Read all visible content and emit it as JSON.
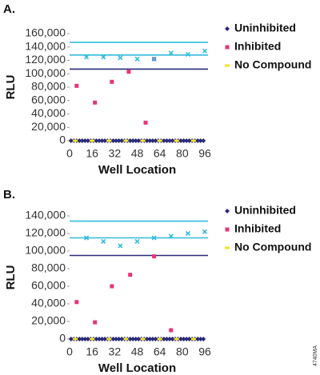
{
  "figure_id": "4740MA",
  "chart_data": [
    {
      "type": "scatter",
      "title": "A.",
      "xlabel": "Well Location",
      "ylabel": "RLU",
      "xlim": [
        0,
        96
      ],
      "xticks": [
        0,
        16,
        32,
        48,
        64,
        80,
        96
      ],
      "ylim": [
        0,
        160000
      ],
      "yticks": [
        0,
        {
          "value": 20000,
          "label": "20,000"
        },
        {
          "value": 40000,
          "label": "40,000"
        },
        {
          "value": 60000,
          "label": "60,000"
        },
        {
          "value": 80000,
          "label": "80,000"
        },
        {
          "value": 100000,
          "label": "100,000"
        },
        {
          "value": 120000,
          "label": "120,000"
        },
        {
          "value": 140000,
          "label": "140,000"
        },
        {
          "value": 160000,
          "label": "160,000"
        }
      ],
      "hlines": [
        {
          "value": 147000,
          "color": "#33bbdd"
        },
        {
          "value": 128000,
          "color": "#33bbdd"
        },
        {
          "value": 107000,
          "color": "#2a2a7a"
        }
      ],
      "series": [
        {
          "name": "Uninhibited",
          "color": "#2a2a7a",
          "marker": "diamond",
          "x": [
            1,
            3,
            5,
            7,
            9,
            11,
            13,
            15,
            17,
            19,
            21,
            23,
            25,
            27,
            29,
            31,
            33,
            35,
            37,
            39,
            41,
            43,
            45,
            47,
            49,
            51,
            53,
            55,
            57,
            59,
            61,
            63,
            65,
            67,
            69,
            71,
            73,
            75,
            77,
            79,
            81,
            83,
            85,
            87,
            89,
            91,
            93,
            95
          ],
          "values": [
            0,
            0,
            0,
            0,
            0,
            0,
            0,
            0,
            0,
            0,
            0,
            0,
            0,
            0,
            0,
            0,
            0,
            0,
            0,
            0,
            0,
            0,
            0,
            0,
            0,
            0,
            0,
            0,
            0,
            0,
            0,
            0,
            0,
            0,
            0,
            0,
            0,
            0,
            0,
            0,
            0,
            0,
            0,
            0,
            0,
            0,
            0,
            0
          ]
        },
        {
          "name": "Inhibited",
          "color": "#e8337a",
          "marker": "square",
          "x": [
            5,
            18,
            30,
            42,
            54,
            60
          ],
          "values": [
            82000,
            57000,
            88000,
            103000,
            27000,
            122000
          ]
        },
        {
          "name": "No Compound",
          "color": "#f2e22a",
          "marker": "dash",
          "x": [
            4,
            16,
            28,
            40,
            52,
            64,
            76,
            88
          ],
          "values": [
            0,
            0,
            0,
            0,
            0,
            0,
            0,
            0
          ]
        },
        {
          "color": "#33bbdd",
          "marker": "x",
          "x": [
            12,
            24,
            36,
            48,
            60,
            72,
            84,
            96
          ],
          "values": [
            125000,
            125000,
            124000,
            122000,
            122000,
            131000,
            129000,
            134000
          ]
        }
      ]
    },
    {
      "type": "scatter",
      "title": "B.",
      "xlabel": "Well Location",
      "ylabel": "RLU",
      "xlim": [
        0,
        96
      ],
      "xticks": [
        0,
        16,
        32,
        48,
        64,
        80,
        96
      ],
      "ylim": [
        0,
        140000
      ],
      "yticks": [
        0,
        {
          "value": 20000,
          "label": "20,000"
        },
        {
          "value": 40000,
          "label": "40,000"
        },
        {
          "value": 60000,
          "label": "60,000"
        },
        {
          "value": 80000,
          "label": "80,000"
        },
        {
          "value": 100000,
          "label": "100,000"
        },
        {
          "value": 120000,
          "label": "120,000"
        },
        {
          "value": 140000,
          "label": "140,000"
        }
      ],
      "hlines": [
        {
          "value": 134000,
          "color": "#33bbdd"
        },
        {
          "value": 115000,
          "color": "#33bbdd"
        },
        {
          "value": 95000,
          "color": "#2a2a7a"
        }
      ],
      "series": [
        {
          "name": "Uninhibited",
          "color": "#2a2a7a",
          "marker": "diamond",
          "x": [
            1,
            3,
            5,
            7,
            9,
            11,
            13,
            15,
            17,
            19,
            21,
            23,
            25,
            27,
            29,
            31,
            33,
            35,
            37,
            39,
            41,
            43,
            45,
            47,
            49,
            51,
            53,
            55,
            57,
            59,
            61,
            63,
            65,
            67,
            69,
            71,
            73,
            75,
            77,
            79,
            81,
            83,
            85,
            87,
            89,
            91,
            93,
            95
          ],
          "values": [
            0,
            0,
            0,
            0,
            0,
            0,
            0,
            0,
            0,
            0,
            0,
            0,
            0,
            0,
            0,
            0,
            0,
            0,
            0,
            0,
            0,
            0,
            0,
            0,
            0,
            0,
            0,
            0,
            0,
            0,
            0,
            0,
            0,
            0,
            0,
            0,
            0,
            0,
            0,
            0,
            0,
            0,
            0,
            0,
            0,
            0,
            0,
            0
          ]
        },
        {
          "name": "Inhibited",
          "color": "#e8337a",
          "marker": "square",
          "x": [
            5,
            18,
            30,
            43,
            60,
            72
          ],
          "values": [
            42000,
            19000,
            60000,
            73000,
            94000,
            10000
          ]
        },
        {
          "name": "No Compound",
          "color": "#f2e22a",
          "marker": "dash",
          "x": [
            4,
            16,
            28,
            40,
            52,
            64,
            76,
            88
          ],
          "values": [
            0,
            0,
            0,
            0,
            0,
            0,
            0,
            0
          ]
        },
        {
          "color": "#33bbdd",
          "marker": "x",
          "x": [
            12,
            24,
            36,
            48,
            60,
            72,
            84,
            96
          ],
          "values": [
            115000,
            111000,
            106000,
            111000,
            115000,
            117000,
            120000,
            122000
          ]
        }
      ]
    }
  ]
}
